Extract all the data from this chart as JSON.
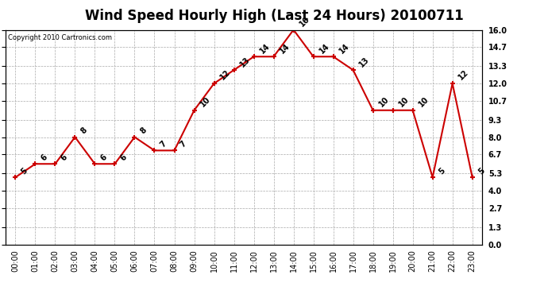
{
  "title": "Wind Speed Hourly High (Last 24 Hours) 20100711",
  "copyright": "Copyright 2010 Cartronics.com",
  "hours": [
    "00:00",
    "01:00",
    "02:00",
    "03:00",
    "04:00",
    "05:00",
    "06:00",
    "07:00",
    "08:00",
    "09:00",
    "10:00",
    "11:00",
    "12:00",
    "13:00",
    "14:00",
    "15:00",
    "16:00",
    "17:00",
    "18:00",
    "19:00",
    "20:00",
    "21:00",
    "22:00",
    "23:00"
  ],
  "values": [
    5,
    6,
    6,
    8,
    6,
    6,
    8,
    7,
    7,
    10,
    12,
    13,
    14,
    14,
    16,
    14,
    14,
    13,
    10,
    10,
    10,
    5,
    12,
    5
  ],
  "line_color": "#cc0000",
  "marker": "+",
  "marker_color": "#cc0000",
  "ylim": [
    0.0,
    16.0
  ],
  "yticks": [
    0.0,
    1.3,
    2.7,
    4.0,
    5.3,
    6.7,
    8.0,
    9.3,
    10.7,
    12.0,
    13.3,
    14.7,
    16.0
  ],
  "grid_color": "#aaaaaa",
  "bg_color": "#ffffff",
  "title_fontsize": 12,
  "label_fontsize": 7,
  "annotation_fontsize": 7,
  "copyright_fontsize": 6
}
